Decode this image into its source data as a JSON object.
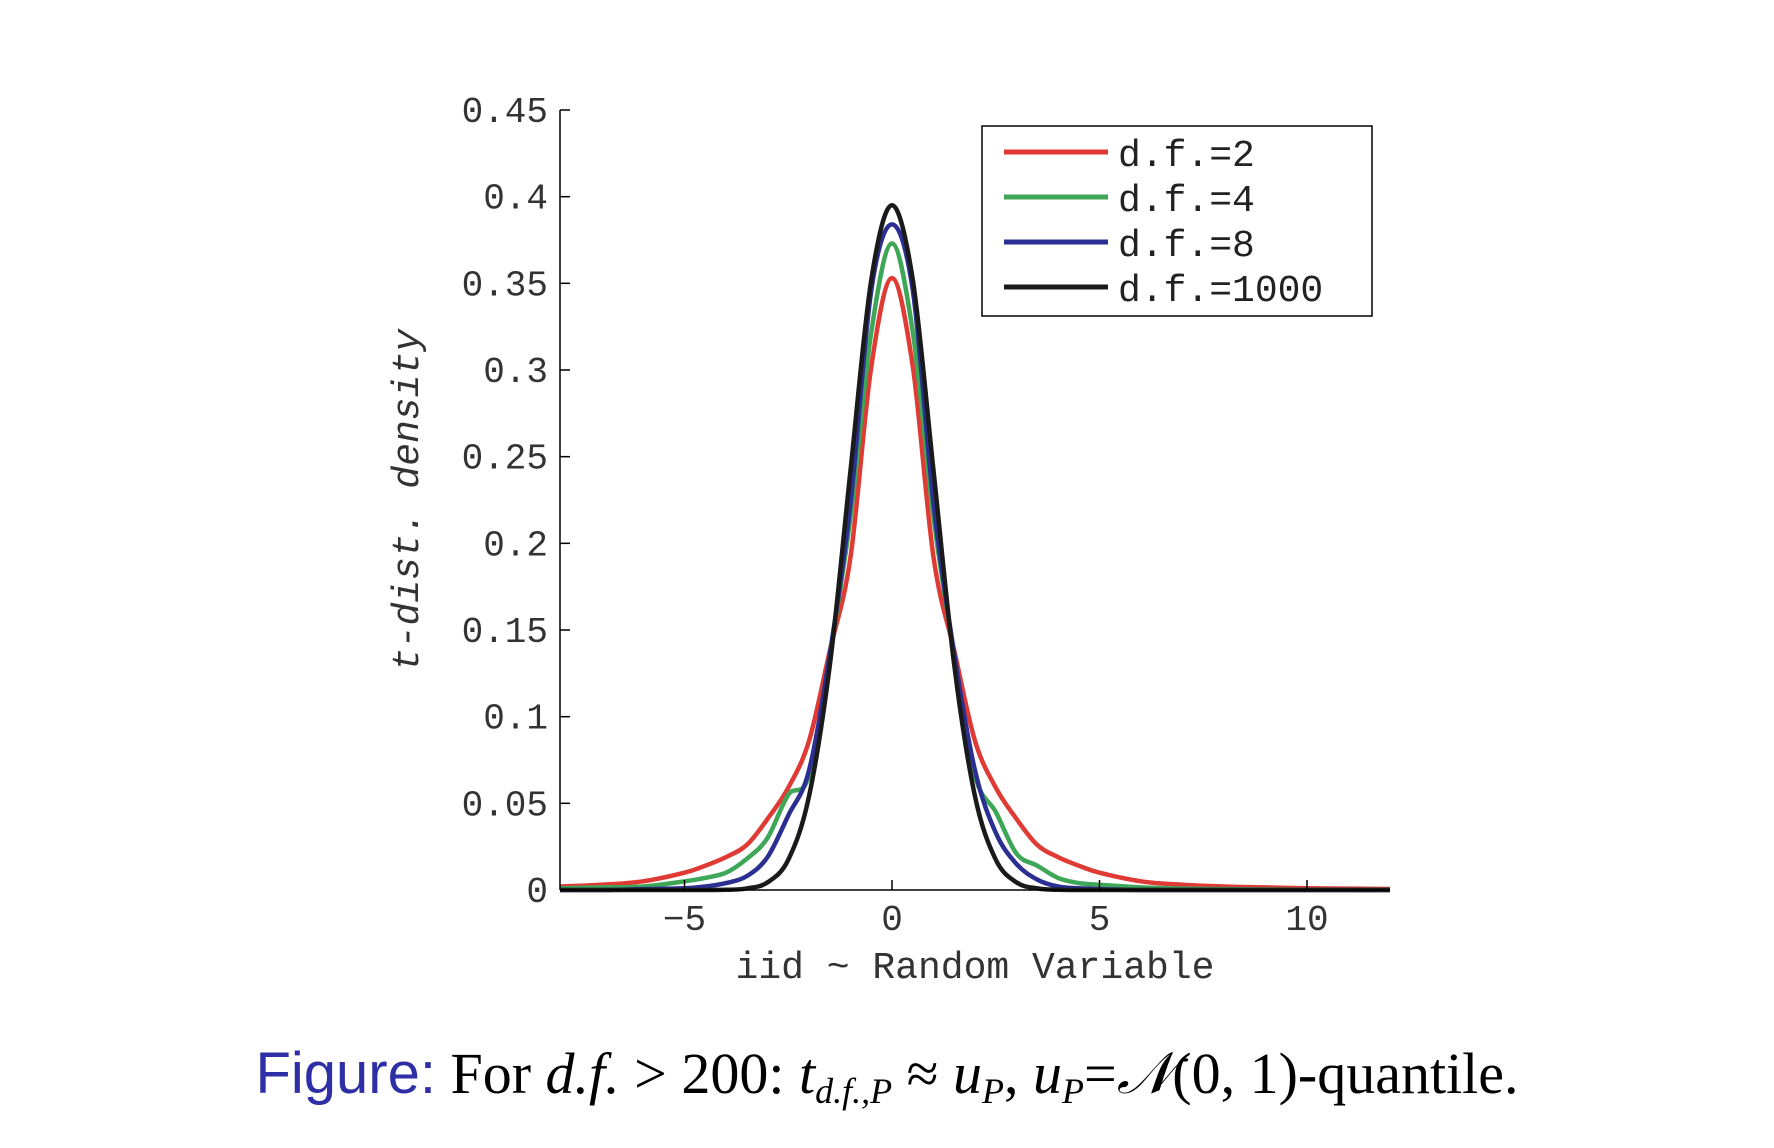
{
  "chart_data": {
    "type": "line",
    "title": "",
    "xlabel": "iid ~ Random Variable",
    "ylabel": "t-dist. density",
    "xlim": [
      -8,
      12
    ],
    "ylim": [
      0,
      0.45
    ],
    "xticks": [
      -5,
      0,
      5,
      10
    ],
    "xtick_labels": [
      "−5",
      "0",
      "5",
      "10"
    ],
    "yticks": [
      0,
      0.05,
      0.1,
      0.15,
      0.2,
      0.25,
      0.3,
      0.35,
      0.4,
      0.45
    ],
    "ytick_labels": [
      "0",
      "0.05",
      "0.1",
      "0.15",
      "0.2",
      "0.25",
      "0.3",
      "0.35",
      "0.4",
      "0.45"
    ],
    "grid": false,
    "legend_position": "top-right",
    "x": [
      -8,
      -7,
      -6,
      -5,
      -4.5,
      -4,
      -3.5,
      -3,
      -2.5,
      -2,
      -1.5,
      -1,
      -0.5,
      0,
      0.5,
      1,
      1.5,
      2,
      2.5,
      3,
      3.5,
      4,
      4.5,
      5,
      6,
      7,
      8,
      9,
      10,
      11,
      12
    ],
    "series": [
      {
        "name": "d.f.=2",
        "color": "#e03a34",
        "values": [
          0.002,
          0.003,
          0.005,
          0.01,
          0.014,
          0.019,
          0.026,
          0.041,
          0.059,
          0.086,
          0.138,
          0.192,
          0.302,
          0.353,
          0.302,
          0.192,
          0.138,
          0.086,
          0.059,
          0.041,
          0.026,
          0.019,
          0.014,
          0.01,
          0.005,
          0.003,
          0.002,
          0.0015,
          0.001,
          0.0008,
          0.0006
        ]
      },
      {
        "name": "d.f.=4",
        "color": "#3ea757",
        "values": [
          0.001,
          0.0015,
          0.002,
          0.005,
          0.007,
          0.01,
          0.018,
          0.03,
          0.055,
          0.066,
          0.136,
          0.215,
          0.322,
          0.373,
          0.322,
          0.215,
          0.136,
          0.066,
          0.045,
          0.021,
          0.014,
          0.007,
          0.004,
          0.003,
          0.0015,
          0.0008,
          0.0005,
          0.0003,
          0.0002,
          0.0001,
          0.0001
        ]
      },
      {
        "name": "d.f.=8",
        "color": "#2b2f91",
        "values": [
          0,
          0,
          0.0005,
          0.001,
          0.002,
          0.004,
          0.008,
          0.019,
          0.043,
          0.069,
          0.136,
          0.223,
          0.346,
          0.384,
          0.346,
          0.223,
          0.136,
          0.069,
          0.033,
          0.015,
          0.006,
          0.002,
          0.001,
          0.0005,
          0,
          0,
          0,
          0,
          0,
          0,
          0
        ]
      },
      {
        "name": "d.f.=1000",
        "color": "#1a1a1a",
        "values": [
          0,
          0,
          0,
          0,
          0,
          0.0001,
          0.0009,
          0.0044,
          0.0175,
          0.054,
          0.1295,
          0.242,
          0.352,
          0.395,
          0.352,
          0.242,
          0.1295,
          0.054,
          0.0175,
          0.0044,
          0.0009,
          0.0001,
          0,
          0,
          0,
          0,
          0,
          0,
          0,
          0,
          0
        ]
      }
    ]
  },
  "caption": {
    "label": "Figure:",
    "text": "For d.f. > 200: t",
    "subscript": "d.f.,P",
    "approx": "≈ u",
    "subscript_2": "P",
    "comma": ",",
    "u": "u",
    "subscript_3": "P",
    "equals": "=𝒩(0, 1)-quantile."
  }
}
